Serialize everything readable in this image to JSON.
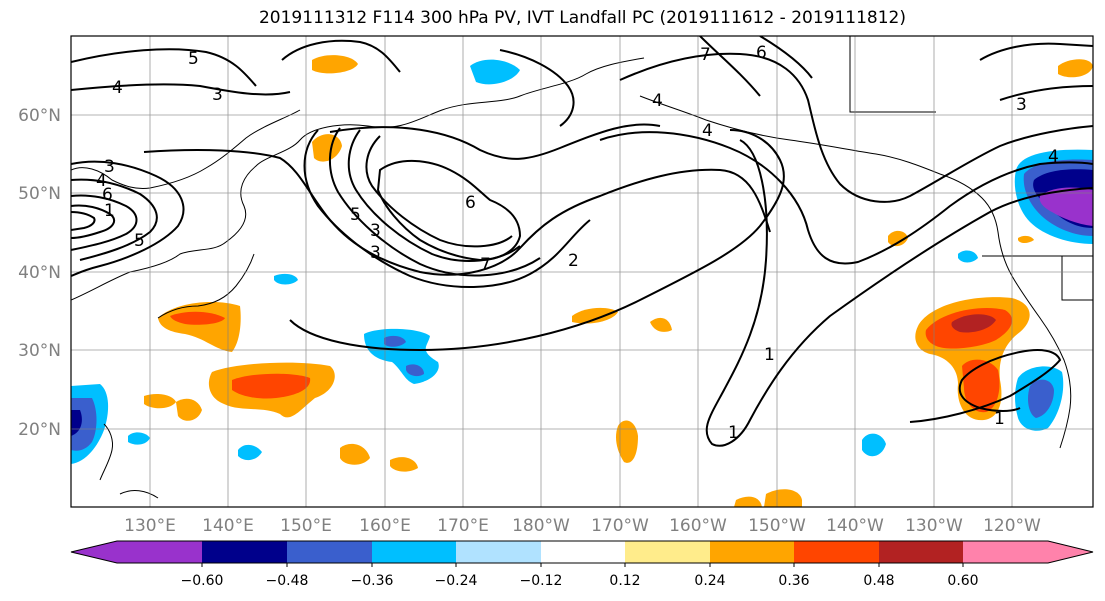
{
  "title": "2019111312 F114 300 hPa PV, IVT Landfall PC (2019111612 - 2019111812)",
  "lat_labels": [
    "60°N",
    "50°N",
    "40°N",
    "30°N",
    "20°N"
  ],
  "lon_labels": [
    "130°E",
    "140°E",
    "150°E",
    "160°E",
    "170°E",
    "180°W",
    "170°W",
    "160°W",
    "150°W",
    "140°W",
    "130°W",
    "120°W"
  ],
  "contour_labels": [
    "5",
    "4",
    "3",
    "3",
    "4",
    "6",
    "1",
    "5",
    "3",
    "5",
    "3",
    "6",
    "7",
    "2",
    "1",
    "1",
    "4",
    "4",
    "7",
    "6",
    "3",
    "4",
    "1"
  ],
  "colorbar": {
    "ticks": [
      "−0.60",
      "−0.48",
      "−0.36",
      "−0.24",
      "−0.12",
      "0.12",
      "0.24",
      "0.36",
      "0.48",
      "0.60"
    ],
    "colors": [
      "#9932cc",
      "#00008b",
      "#3a5fcd",
      "#00bfff",
      "#b0e2ff",
      "#ffffff",
      "#ffec8b",
      "#ffa500",
      "#ff4500",
      "#b22222",
      "#ff82ab"
    ]
  }
}
